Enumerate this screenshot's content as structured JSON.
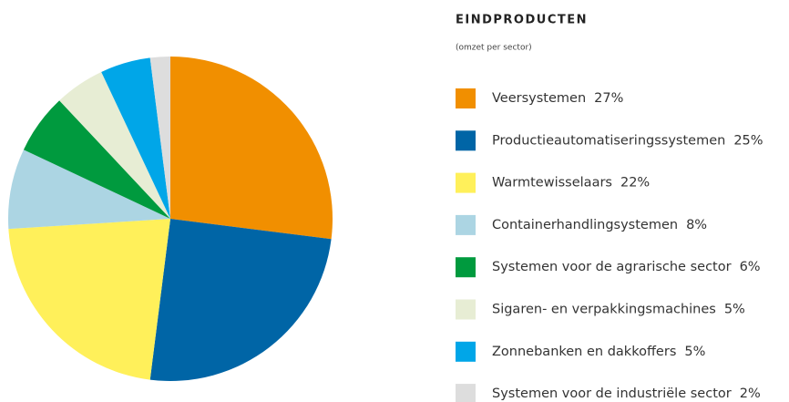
{
  "chart_data": {
    "type": "pie",
    "title": "EINDPRODUCTEN",
    "subtitle": "(omzet per sector)",
    "categories": [
      "Veersystemen",
      "Productieautomatiseringssystemen",
      "Warmtewisselaars",
      "Containerhandlingsystemen",
      "Systemen voor de agrarische sector",
      "Sigaren- en verpakkingsmachines",
      "Zonnebanken en dakkoffers",
      "Systemen voor de industriële sector"
    ],
    "values": [
      27,
      25,
      22,
      8,
      6,
      5,
      5,
      2
    ],
    "value_labels": [
      "27%",
      "25%",
      "22%",
      "8%",
      "6%",
      "5%",
      "5%",
      "2%"
    ],
    "colors": [
      "#f18f00",
      "#0065a6",
      "#fff05a",
      "#acd5e3",
      "#009a3e",
      "#e7edd4",
      "#00a6e8",
      "#dddddd"
    ]
  }
}
